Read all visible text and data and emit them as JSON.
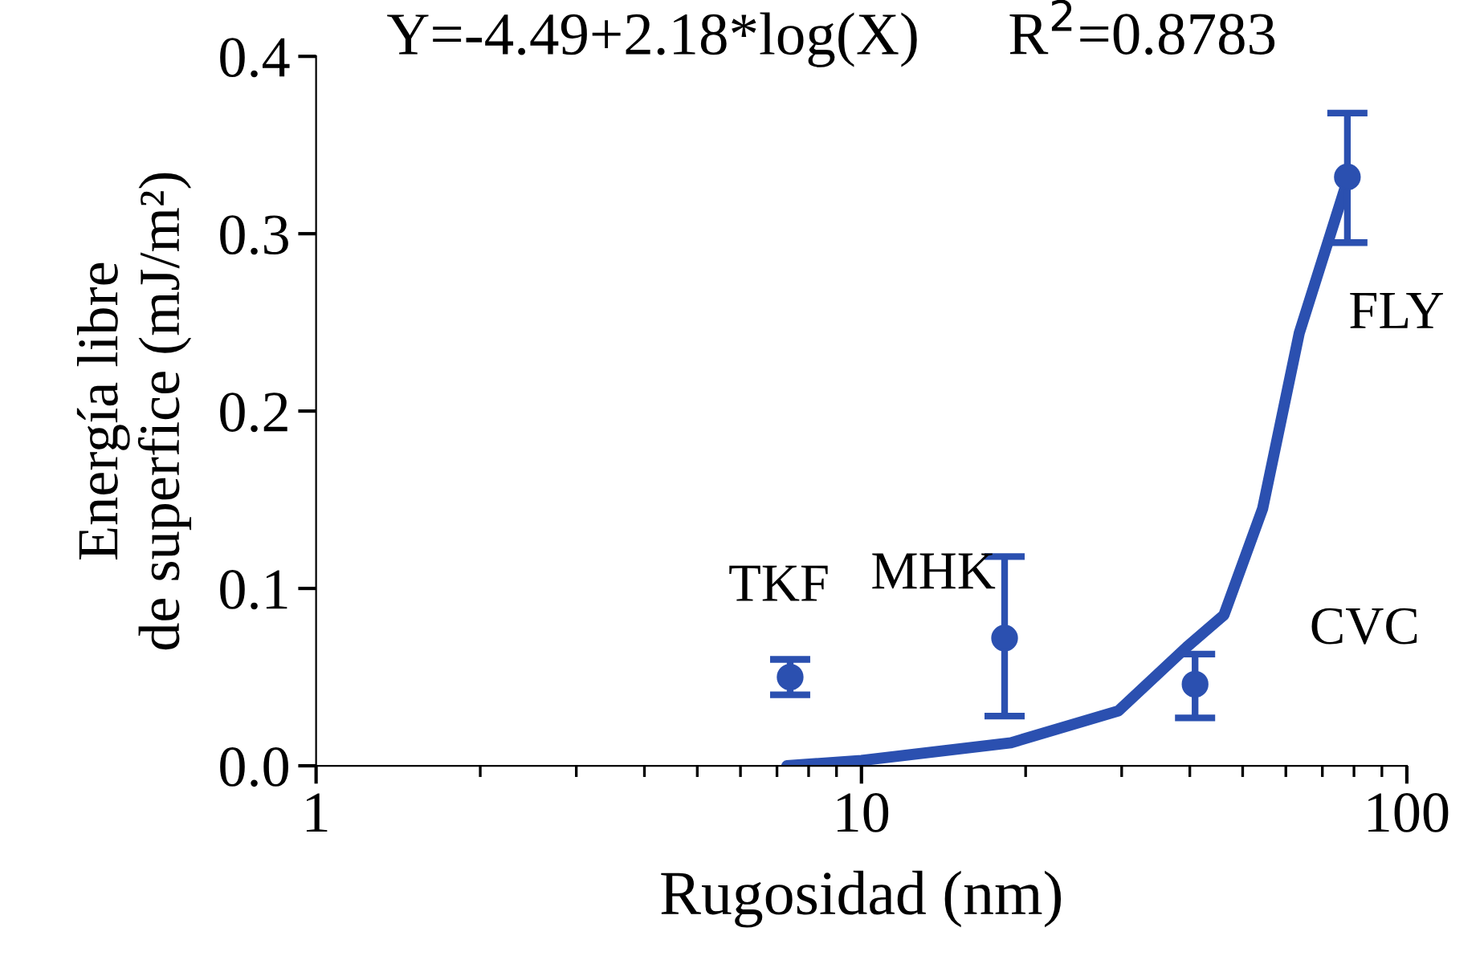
{
  "chart_data": {
    "type": "scatter",
    "xlabel": "Rugosidad (nm)",
    "ylabel": "Energía libre\nde superfice (mJ/m²)",
    "log": "x",
    "xlim": [
      1,
      100
    ],
    "xticks": [
      1,
      10,
      100
    ],
    "ylim": [
      0,
      0.4
    ],
    "yticks": [
      {
        "value": 0,
        "label": "0.0"
      },
      {
        "value": 0.1,
        "label": "0.1"
      },
      {
        "value": 0.2,
        "label": "0.2"
      },
      {
        "value": 0.3,
        "label": "0.3"
      },
      {
        "value": 0.4,
        "label": "0.4"
      }
    ],
    "grid": false,
    "legend": false,
    "series": [
      {
        "color": "#2b50b0",
        "marker": "circle",
        "x": [
          7.4,
          18.3,
          40.9,
          77.8
        ],
        "values": [
          0.05,
          0.072,
          0.046,
          0.332
        ],
        "errors": [
          [
            0.04,
            0.06
          ],
          [
            0.028,
            0.118
          ],
          [
            0.027,
            0.063
          ],
          [
            0.295,
            0.368
          ]
        ]
      },
      {
        "type": "line",
        "color": "#2b50b0",
        "x": [
          7.3,
          10,
          18.8,
          29.6,
          39.5,
          46.2,
          54.4,
          63.5,
          77.8
        ],
        "values": [
          0,
          0.003,
          0.013,
          0.031,
          0.067,
          0.085,
          0.145,
          0.244,
          0.33
        ]
      }
    ],
    "annotations": [
      "Y=-4.49+2.18*log(X)",
      "R$^{2}$=0.8783",
      {
        "text": "TKF",
        "x": 7.4,
        "y": 0.05
      },
      {
        "text": "MHK",
        "x": 18.3,
        "y": 0.072
      },
      {
        "text": "CVC",
        "x": 40.9,
        "y": 0.046
      },
      {
        "text": "FLY",
        "x": 77.8,
        "y": 0.332
      }
    ]
  }
}
